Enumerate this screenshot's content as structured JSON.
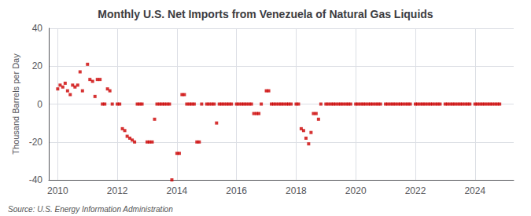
{
  "chart_data": {
    "type": "scatter",
    "title": "Monthly U.S. Net Imports from Venezuela of Natural Gas Liquids",
    "ylabel": "Thousand Barrels per Day",
    "annotations": [
      "Source: U.S. Energy Information Administration"
    ],
    "color": "#cc0000",
    "marker": "square",
    "grid": true,
    "xlim": [
      2009.7,
      2025.3
    ],
    "xticks": [
      2010,
      2012,
      2014,
      2016,
      2018,
      2020,
      2022,
      2024
    ],
    "ylim": [
      -40,
      40
    ],
    "yticks": [
      -40,
      -20,
      0,
      20,
      40
    ],
    "x": [
      2010,
      2010.08,
      2010.17,
      2010.25,
      2010.33,
      2010.42,
      2010.5,
      2010.58,
      2010.67,
      2010.75,
      2010.83,
      2011,
      2011.08,
      2011.17,
      2011.25,
      2011.33,
      2011.42,
      2011.5,
      2011.58,
      2011.67,
      2011.75,
      2011.83,
      2012,
      2012.08,
      2012.17,
      2012.25,
      2012.33,
      2012.42,
      2012.5,
      2012.58,
      2012.67,
      2012.75,
      2012.83,
      2013,
      2013.08,
      2013.17,
      2013.25,
      2013.33,
      2013.42,
      2013.5,
      2013.58,
      2013.67,
      2013.75,
      2013.83,
      2014,
      2014.08,
      2014.17,
      2014.25,
      2014.33,
      2014.42,
      2014.5,
      2014.58,
      2014.67,
      2014.75,
      2014.83,
      2015,
      2015.08,
      2015.17,
      2015.25,
      2015.33,
      2015.42,
      2015.5,
      2015.58,
      2015.67,
      2015.75,
      2015.83,
      2016,
      2016.08,
      2016.17,
      2016.25,
      2016.33,
      2016.42,
      2016.5,
      2016.58,
      2016.67,
      2016.75,
      2016.83,
      2017,
      2017.08,
      2017.17,
      2017.25,
      2017.33,
      2017.42,
      2017.5,
      2017.58,
      2017.67,
      2017.75,
      2017.83,
      2018,
      2018.08,
      2018.17,
      2018.25,
      2018.33,
      2018.42,
      2018.5,
      2018.58,
      2018.67,
      2018.75,
      2018.83,
      2019,
      2019.08,
      2019.17,
      2019.25,
      2019.33,
      2019.42,
      2019.5,
      2019.58,
      2019.67,
      2019.75,
      2019.83,
      2020,
      2020.08,
      2020.17,
      2020.25,
      2020.33,
      2020.42,
      2020.5,
      2020.58,
      2020.67,
      2020.75,
      2020.83,
      2021,
      2021.08,
      2021.17,
      2021.25,
      2021.33,
      2021.42,
      2021.5,
      2021.58,
      2021.67,
      2021.75,
      2021.83,
      2022,
      2022.08,
      2022.17,
      2022.25,
      2022.33,
      2022.42,
      2022.5,
      2022.58,
      2022.67,
      2022.75,
      2022.83,
      2023,
      2023.08,
      2023.17,
      2023.25,
      2023.33,
      2023.42,
      2023.5,
      2023.58,
      2023.67,
      2023.75,
      2023.83,
      2024,
      2024.08,
      2024.17,
      2024.25,
      2024.33,
      2024.42,
      2024.5,
      2024.58,
      2024.67,
      2024.75,
      2024.83
    ],
    "values": [
      8,
      10,
      9,
      11,
      7,
      5,
      10,
      9,
      10,
      17,
      7,
      21,
      13,
      12,
      4,
      13,
      13,
      0,
      0,
      8,
      7,
      0,
      0,
      0,
      -13,
      -14,
      -17,
      -18,
      -19,
      -20,
      0,
      0,
      0,
      -20,
      -20,
      -20,
      -8,
      0,
      0,
      0,
      0,
      0,
      0,
      -40,
      -26,
      -26,
      5,
      5,
      0,
      0,
      0,
      0,
      -20,
      -20,
      0,
      0,
      0,
      0,
      0,
      -10,
      0,
      0,
      0,
      0,
      0,
      0,
      0,
      0,
      0,
      0,
      0,
      0,
      0,
      -5,
      -5,
      -5,
      0,
      7,
      7,
      0,
      0,
      0,
      0,
      0,
      0,
      0,
      0,
      0,
      0,
      0,
      -13,
      -14,
      -18,
      -21,
      -15,
      -5,
      -5,
      -8,
      0,
      0,
      0,
      0,
      0,
      0,
      0,
      0,
      0,
      0,
      0,
      0,
      0,
      0,
      0,
      0,
      0,
      0,
      0,
      0,
      0,
      0,
      0,
      0,
      0,
      0,
      0,
      0,
      0,
      0,
      0,
      0,
      0,
      0,
      0,
      0,
      0,
      0,
      0,
      0,
      0,
      0,
      0,
      0,
      0,
      0,
      0,
      0,
      0,
      0,
      0,
      0,
      0,
      0,
      0,
      0,
      0,
      0,
      0,
      0,
      0,
      0,
      0,
      0,
      0,
      0,
      0
    ]
  }
}
